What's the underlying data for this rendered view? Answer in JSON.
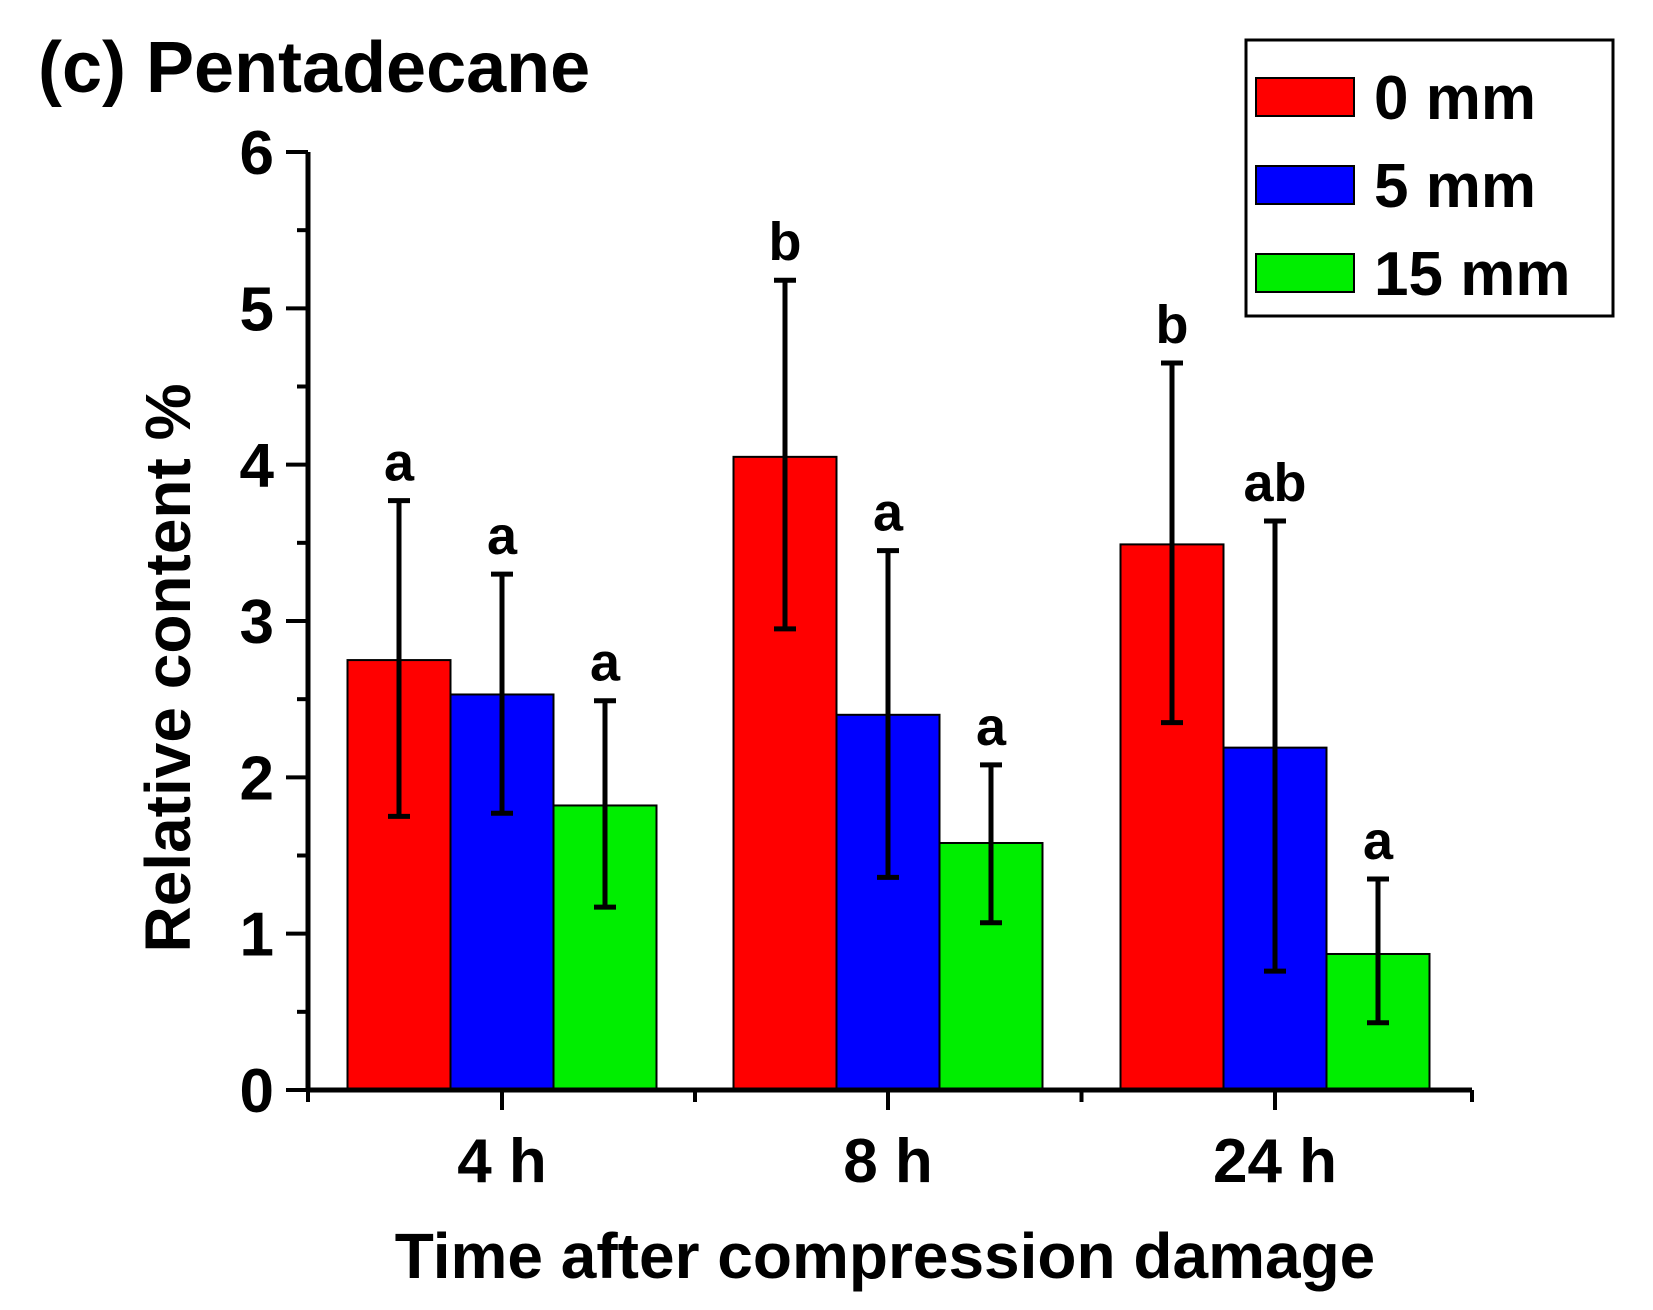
{
  "chart_data": {
    "type": "bar",
    "title": "(c) Pentadecane",
    "xlabel": "Time after compression damage",
    "ylabel": "Relative content %",
    "ylim": [
      0,
      6
    ],
    "yticks": [
      "0",
      "1",
      "2",
      "3",
      "4",
      "5",
      "6"
    ],
    "categories": [
      "4 h",
      "8 h",
      "24 h"
    ],
    "grid": false,
    "legend_position": "top-right",
    "series": [
      {
        "name": "0 mm",
        "color": "#ff0000",
        "values": [
          2.75,
          4.05,
          3.49
        ],
        "err_low": [
          1.75,
          2.95,
          2.35
        ],
        "err_high": [
          3.77,
          5.18,
          4.65
        ],
        "labels": [
          "a",
          "b",
          "b"
        ]
      },
      {
        "name": "5 mm",
        "color": "#0000ff",
        "values": [
          2.53,
          2.4,
          2.19
        ],
        "err_low": [
          1.77,
          1.36,
          0.76
        ],
        "err_high": [
          3.3,
          3.45,
          3.64
        ],
        "labels": [
          "a",
          "a",
          "ab"
        ]
      },
      {
        "name": "15 mm",
        "color": "#00ee00",
        "values": [
          1.82,
          1.58,
          0.87
        ],
        "err_low": [
          1.17,
          1.07,
          0.43
        ],
        "err_high": [
          2.49,
          2.08,
          1.35
        ],
        "labels": [
          "a",
          "a",
          "a"
        ]
      }
    ]
  }
}
